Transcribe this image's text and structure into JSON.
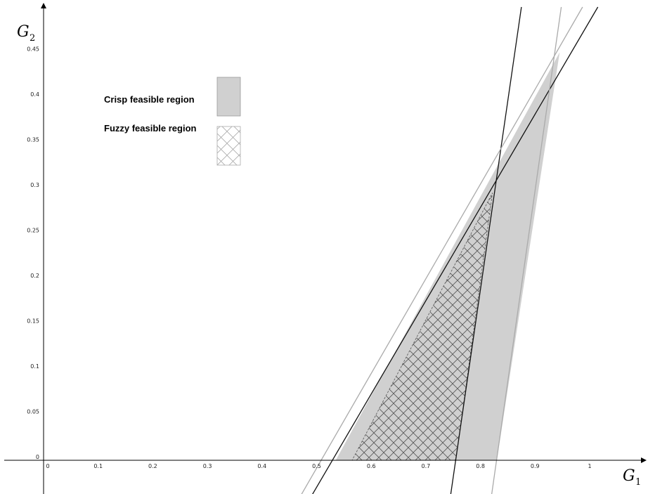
{
  "chart_data": {
    "type": "area",
    "x_axis": {
      "symbol": "G",
      "subscript": "1",
      "ticks": [
        0,
        0.1,
        0.2,
        0.3,
        0.4,
        0.5,
        0.6,
        0.7,
        0.8,
        0.9,
        1
      ],
      "range": [
        -0.08,
        1.1
      ]
    },
    "y_axis": {
      "symbol": "G",
      "subscript": "2",
      "ticks": [
        0,
        0.05,
        0.1,
        0.15,
        0.2,
        0.25,
        0.3,
        0.35,
        0.4,
        0.45
      ],
      "range": [
        -0.04,
        0.5
      ]
    },
    "regions": [
      {
        "name": "Crisp feasible region",
        "style": "fill",
        "color": "#d0d0d0",
        "vertices": [
          [
            0.535,
            0
          ],
          [
            0.83,
            0
          ],
          [
            0.945,
            0.45
          ]
        ]
      },
      {
        "name": "Fuzzy feasible region",
        "style": "crosshatch",
        "color": "#555555",
        "vertices": [
          [
            0.565,
            0
          ],
          [
            0.755,
            0
          ],
          [
            0.822,
            0.295
          ]
        ]
      }
    ],
    "lines": [
      {
        "color": "#111111",
        "points": [
          [
            0.49,
            -0.04
          ],
          [
            1.015,
            0.5
          ]
        ]
      },
      {
        "color": "#111111",
        "points": [
          [
            0.745,
            -0.04
          ],
          [
            0.875,
            0.5
          ]
        ]
      },
      {
        "color": "#aaaaaa",
        "points": [
          [
            0.47,
            -0.04
          ],
          [
            0.987,
            0.5
          ]
        ]
      },
      {
        "color": "#aaaaaa",
        "points": [
          [
            0.82,
            -0.04
          ],
          [
            0.948,
            0.5
          ]
        ]
      }
    ],
    "legend": {
      "placement": "top-left",
      "entries": [
        {
          "label": "Crisp feasible region",
          "style": "fill"
        },
        {
          "label": "Fuzzy feasible region",
          "style": "crosshatch"
        }
      ]
    },
    "grid": false
  }
}
